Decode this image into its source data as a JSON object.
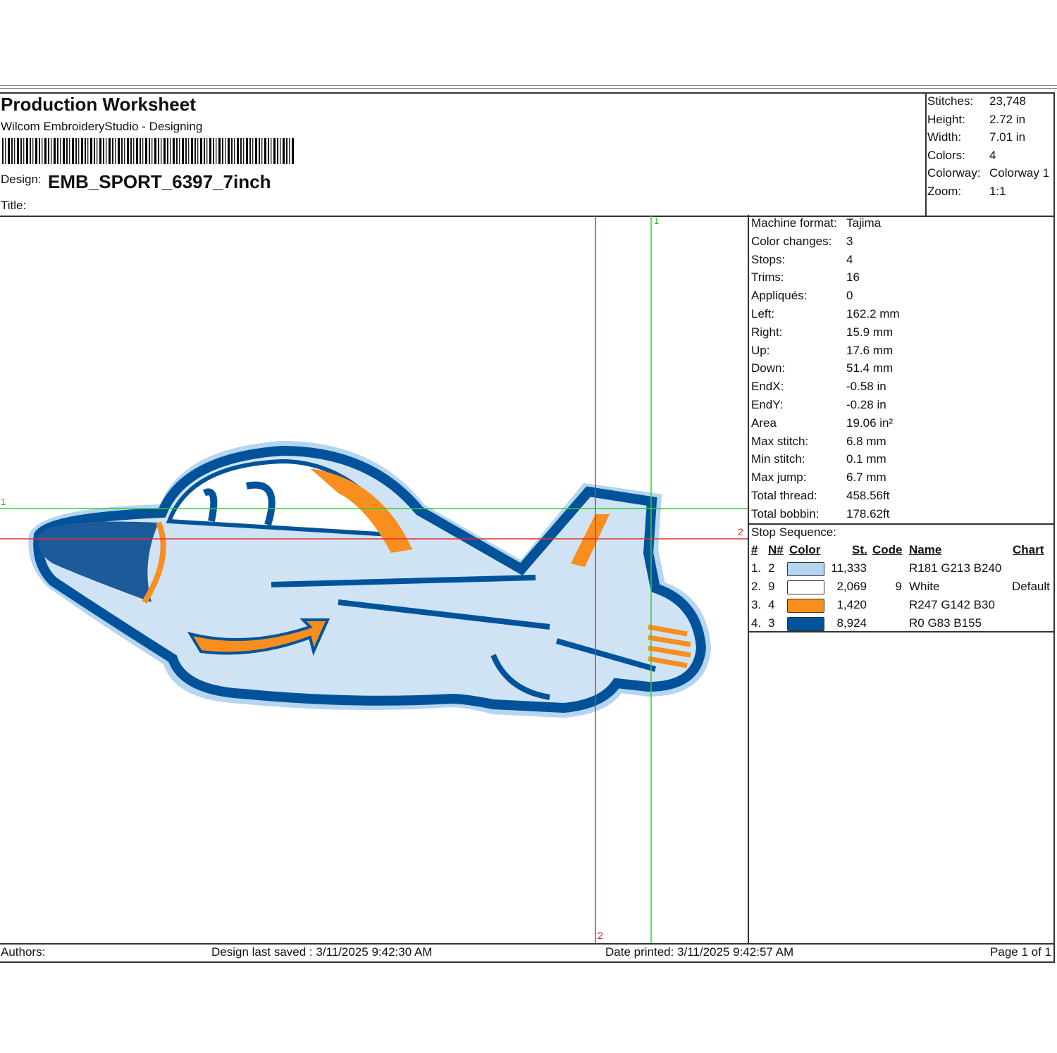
{
  "header": {
    "title": "Production Worksheet",
    "subtitle": "Wilcom EmbroideryStudio - Designing",
    "design_label": "Design:",
    "design_name": "EMB_SPORT_6397_7inch",
    "title_label": "Title:"
  },
  "summary": [
    {
      "label": "Stitches:",
      "value": "23,748"
    },
    {
      "label": "Height:",
      "value": "2.72 in"
    },
    {
      "label": "Width:",
      "value": "7.01 in"
    },
    {
      "label": "Colors:",
      "value": "4"
    },
    {
      "label": "Colorway:",
      "value": "Colorway 1"
    },
    {
      "label": "Zoom:",
      "value": "1:1"
    }
  ],
  "details": [
    {
      "label": "Machine format:",
      "value": "Tajima"
    },
    {
      "label": "Color changes:",
      "value": "3"
    },
    {
      "label": "Stops:",
      "value": "4"
    },
    {
      "label": "Trims:",
      "value": "16"
    },
    {
      "label": "Appliqués:",
      "value": "0"
    },
    {
      "label": "Left:",
      "value": "162.2 mm"
    },
    {
      "label": "Right:",
      "value": "15.9 mm"
    },
    {
      "label": "Up:",
      "value": "17.6 mm"
    },
    {
      "label": "Down:",
      "value": "51.4 mm"
    },
    {
      "label": "EndX:",
      "value": "-0.58 in"
    },
    {
      "label": "EndY:",
      "value": "-0.28 in"
    },
    {
      "label": "Area",
      "value": " 19.06 in²"
    },
    {
      "label": "Max stitch:",
      "value": "6.8 mm"
    },
    {
      "label": "Min stitch:",
      "value": "0.1 mm"
    },
    {
      "label": "Max jump:",
      "value": "6.7 mm"
    },
    {
      "label": "Total thread:",
      "value": "458.56ft"
    },
    {
      "label": "Total bobbin:",
      "value": "178.62ft"
    }
  ],
  "stop_sequence": {
    "title": "Stop Sequence:",
    "headers": [
      "#",
      "N#",
      "Color",
      "St.",
      "Code",
      "Name",
      "Chart"
    ],
    "rows": [
      {
        "num": "1.",
        "n": "2",
        "color": "#b5d5f0",
        "stitches": "11,333",
        "code": "",
        "name": "R181 G213 B240",
        "chart": ""
      },
      {
        "num": "2.",
        "n": "9",
        "color": "#ffffff",
        "stitches": "2,069",
        "code": "9",
        "name": "White",
        "chart": "Default"
      },
      {
        "num": "3.",
        "n": "4",
        "color": "#f78e1e",
        "stitches": "1,420",
        "code": "",
        "name": "R247 G142 B30",
        "chart": ""
      },
      {
        "num": "4.",
        "n": "3",
        "color": "#00539b",
        "stitches": "8,924",
        "code": "",
        "name": "R0 G83 B155",
        "chart": ""
      }
    ]
  },
  "markers": {
    "green_v": "1",
    "green_h": "1",
    "red_h": "2",
    "red_v": "2"
  },
  "footer": {
    "authors": "Authors:",
    "saved": "Design last saved : 3/11/2025 9:42:30 AM",
    "printed": "Date printed: 3/11/2025 9:42:57 AM",
    "page": "Page 1 of 1"
  }
}
